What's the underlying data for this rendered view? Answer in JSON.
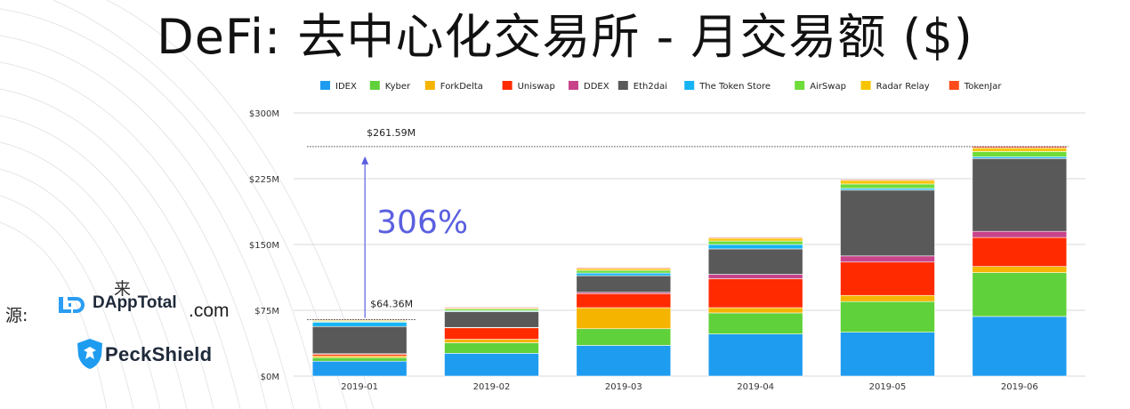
{
  "page": {
    "title": "DeFi: 去中心化交易所 - 月交易额 ($)",
    "source_label": "源:",
    "dapp_logo": {
      "text": "DAppTotal",
      "sup_text": "来",
      "suffix": ".com",
      "icon": "dapptotal-logo-icon"
    },
    "peckshield_logo": {
      "text": "PeckShield",
      "icon": "peckshield-shield-icon"
    }
  },
  "chart_data": {
    "type": "bar",
    "stacked": true,
    "title": "",
    "xlabel": "",
    "ylabel": "",
    "categories": [
      "2019-01",
      "2019-02",
      "2019-03",
      "2019-04",
      "2019-05",
      "2019-06"
    ],
    "ylim": [
      0,
      300
    ],
    "y_ticks": [
      0,
      75,
      150,
      225,
      300
    ],
    "y_tick_labels": [
      "$0M",
      "$75M",
      "$150M",
      "$225M",
      "$300M"
    ],
    "grid": true,
    "legend_position": "top",
    "series": [
      {
        "name": "IDEX",
        "color": "#1e9cf0",
        "values": [
          17,
          26,
          35,
          48,
          50,
          68
        ]
      },
      {
        "name": "Kyber",
        "color": "#5fd13a",
        "values": [
          4,
          12,
          19,
          24,
          35,
          50
        ]
      },
      {
        "name": "ForkDelta",
        "color": "#f5b400",
        "values": [
          2,
          4,
          24,
          6,
          7,
          7
        ]
      },
      {
        "name": "Uniswap",
        "color": "#ff2a00",
        "values": [
          2,
          13,
          16,
          33,
          38,
          33
        ]
      },
      {
        "name": "DDEX",
        "color": "#c8438a",
        "values": [
          0.5,
          0.5,
          1.5,
          5,
          7,
          7
        ]
      },
      {
        "name": "Eth2dai",
        "color": "#595959",
        "values": [
          31,
          18,
          19,
          29,
          75,
          83
        ]
      },
      {
        "name": "The Token Store",
        "color": "#16b4f5",
        "values": [
          5,
          1,
          3,
          5,
          2,
          2
        ]
      },
      {
        "name": "AirSwap",
        "color": "#6fdc3a",
        "values": [
          1,
          2,
          3,
          4,
          5,
          6
        ]
      },
      {
        "name": "Radar Relay",
        "color": "#f7c500",
        "values": [
          1,
          1,
          2,
          3,
          4,
          4
        ]
      },
      {
        "name": "TokenJar",
        "color": "#ff4a1a",
        "values": [
          0.86,
          1,
          1,
          1,
          1,
          1.59
        ]
      }
    ],
    "annotations": [
      {
        "label": "$64.36M",
        "category": "2019-01",
        "value": 64.36
      },
      {
        "label": "$261.59M",
        "category": "2019-06",
        "value": 261.59
      },
      {
        "label": "306%",
        "color": "#5a5fe0"
      }
    ]
  }
}
